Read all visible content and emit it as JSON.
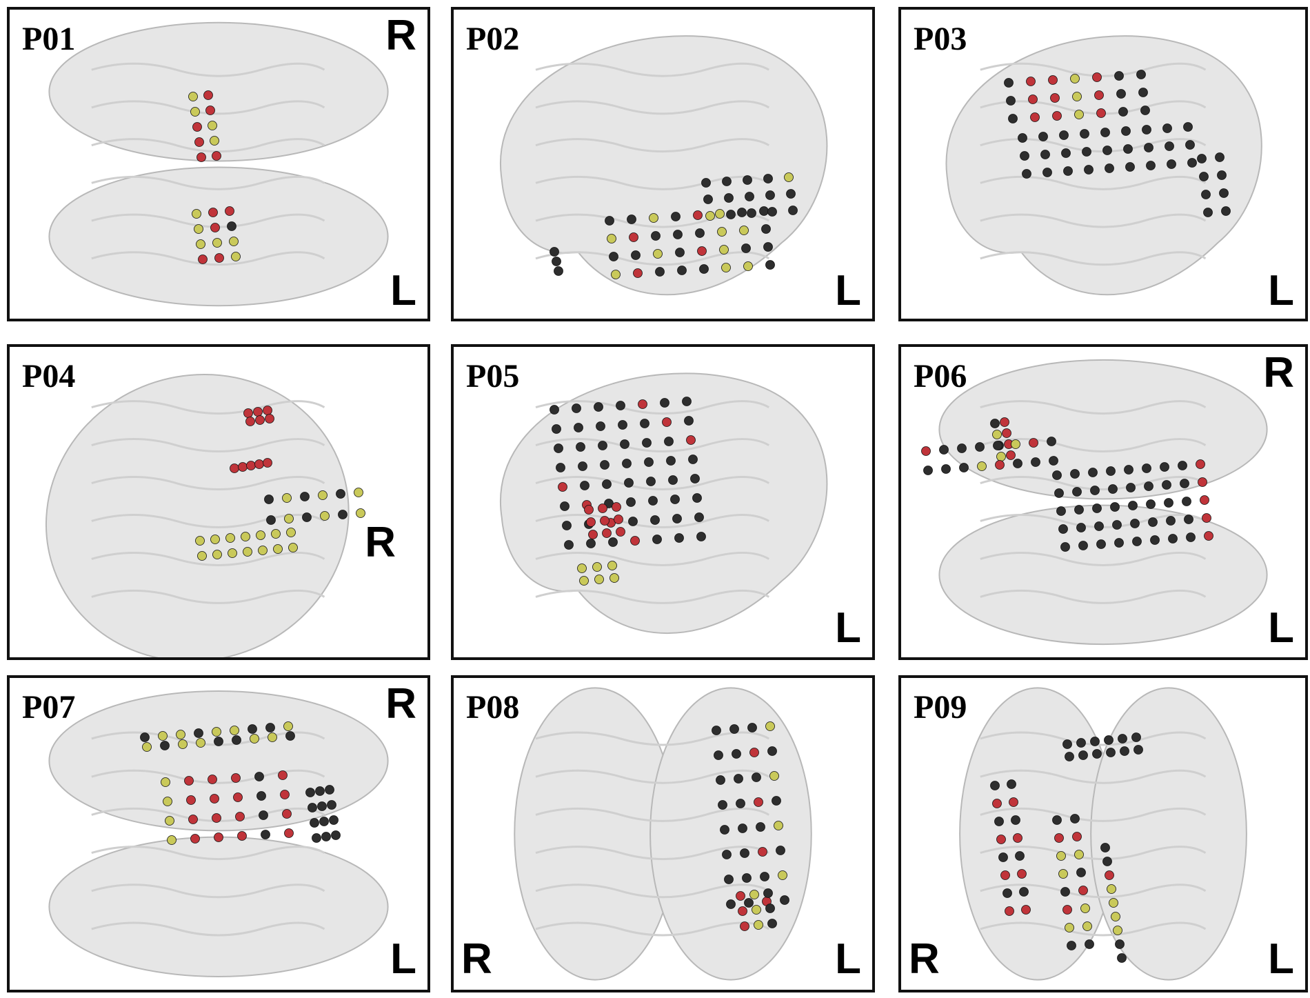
{
  "panels": [
    {
      "label": "P01",
      "orientation": [
        "R",
        "L"
      ]
    },
    {
      "label": "P02",
      "orientation": [
        "L"
      ]
    },
    {
      "label": "P03",
      "orientation": [
        "L"
      ]
    },
    {
      "label": "P04",
      "orientation": [
        "R"
      ]
    },
    {
      "label": "P05",
      "orientation": [
        "L"
      ]
    },
    {
      "label": "P06",
      "orientation": [
        "R",
        "L"
      ]
    },
    {
      "label": "P07",
      "orientation": [
        "R",
        "L"
      ]
    },
    {
      "label": "P08",
      "orientation": [
        "R",
        "L"
      ]
    },
    {
      "label": "P09",
      "orientation": [
        "R",
        "L"
      ]
    }
  ]
}
